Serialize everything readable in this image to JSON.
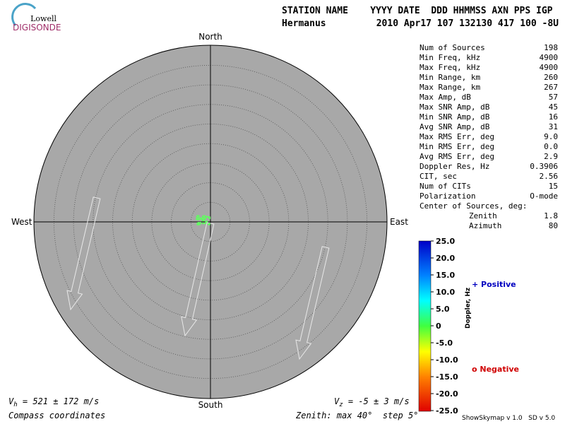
{
  "logo": {
    "top": "Lowell",
    "bottom": "DIGISONDE"
  },
  "header": {
    "label_row": "STATION NAME    YYYY DATE  DDD HHMMSS AXN PPS IGP",
    "station": "Hermanus",
    "value_row": "2010 Apr17 107 132130 417 100 -8U"
  },
  "compass": {
    "north": "North",
    "south": "South",
    "east": "East",
    "west": "West"
  },
  "stats": {
    "rows": [
      [
        "Num of Sources",
        "198"
      ],
      [
        "Min Freq, kHz",
        "4900"
      ],
      [
        "Max Freq, kHz",
        "4900"
      ],
      [
        "Min Range, km",
        "260"
      ],
      [
        "Max Range, km",
        "267"
      ],
      [
        "Max Amp, dB",
        "57"
      ],
      [
        "Max SNR Amp, dB",
        "45"
      ],
      [
        "Min SNR Amp, dB",
        "16"
      ],
      [
        "Avg SNR Amp, dB",
        "31"
      ],
      [
        "Max RMS Err, deg",
        "9.0"
      ],
      [
        "Min RMS Err, deg",
        "0.0"
      ],
      [
        "Avg RMS Err, deg",
        "2.9"
      ],
      [
        "Doppler Res, Hz",
        "0.3906"
      ],
      [
        "CIT, sec",
        "2.56"
      ],
      [
        "Num of CITs",
        "15"
      ],
      [
        "Polarization",
        "O-mode"
      ]
    ],
    "center_label": "Center of Sources, deg:",
    "zenith": [
      "Zenith",
      "1.8"
    ],
    "azimuth": [
      "Azimuth",
      "80"
    ]
  },
  "colorbar": {
    "ticks": [
      "25.0",
      "20.0",
      "15.0",
      "10.0",
      "5.0",
      "0",
      "-5.0",
      "-10.0",
      "-15.0",
      "-20.0",
      "-25.0"
    ],
    "axis_label": "Doppler, Hz",
    "positive": "+ Positive",
    "negative": "o Negative"
  },
  "footer": {
    "vh": [
      "V",
      "h",
      " = 521 ± 172 m/s"
    ],
    "vz": [
      "V",
      "z",
      " = -5 ± 3 m/s"
    ],
    "coords": "Compass coordinates",
    "zenith": "Zenith: max 40°  step 5°",
    "version": "ShowSkymap v 1.0   SD v 5.0"
  }
}
